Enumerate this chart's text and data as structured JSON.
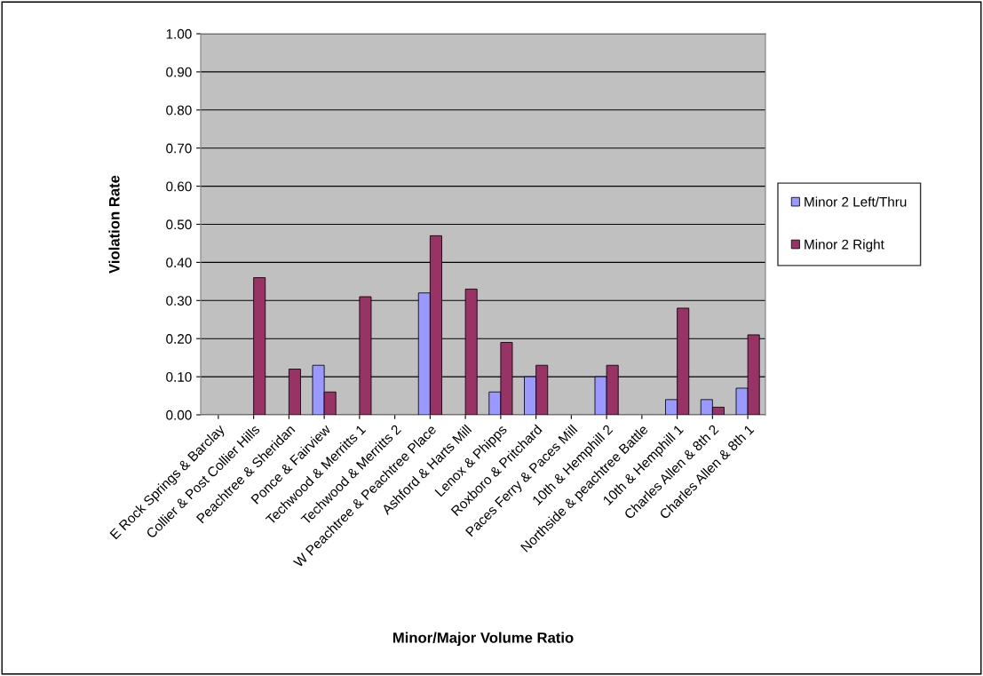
{
  "chart_data": {
    "type": "bar",
    "xlabel": "Minor/Major Volume Ratio",
    "ylabel": "Violation Rate",
    "categories": [
      "E Rock Springs & Barclay",
      "Collier & Post Collier Hills",
      "Peachtree & Sheridan",
      "Ponce & Fairview",
      "Techwood & Merritts 1",
      "Techwood & Merritts 2",
      "W Peachtree & Peachtree Place",
      "Ashford & Harts Mill",
      "Lenox & Phipps",
      "Roxboro & Pritchard",
      "Paces Ferry & Paces Mill",
      "10th & Hemphill 2",
      "Northside & peachtree Battle",
      "10th & Hemphill 1",
      "Charles Allen & 8th 2",
      "Charles Allen & 8th 1"
    ],
    "series": [
      {
        "name": "Minor 2 Left/Thru",
        "color": "#9999ff",
        "values": [
          null,
          null,
          null,
          0.13,
          null,
          null,
          0.32,
          null,
          0.06,
          0.1,
          null,
          0.1,
          null,
          0.04,
          0.04,
          0.07
        ]
      },
      {
        "name": "Minor 2 Right",
        "color": "#993366",
        "values": [
          null,
          0.36,
          0.12,
          0.06,
          0.31,
          null,
          0.47,
          0.33,
          0.19,
          0.13,
          null,
          0.13,
          null,
          0.28,
          0.02,
          0.21
        ]
      }
    ],
    "ylim": [
      0,
      1
    ],
    "yticks": [
      {
        "value": 0,
        "label": "0.00"
      },
      {
        "value": 0.1,
        "label": "0.10"
      },
      {
        "value": 0.2,
        "label": "0.20"
      },
      {
        "value": 0.3,
        "label": "0.30"
      },
      {
        "value": 0.4,
        "label": "0.40"
      },
      {
        "value": 0.5,
        "label": "0.50"
      },
      {
        "value": 0.6,
        "label": "0.60"
      },
      {
        "value": 0.7,
        "label": "0.70"
      },
      {
        "value": 0.8,
        "label": "0.80"
      },
      {
        "value": 0.9,
        "label": "0.90"
      },
      {
        "value": 1,
        "label": "1.00"
      }
    ],
    "grid": "y",
    "legend": "right"
  }
}
